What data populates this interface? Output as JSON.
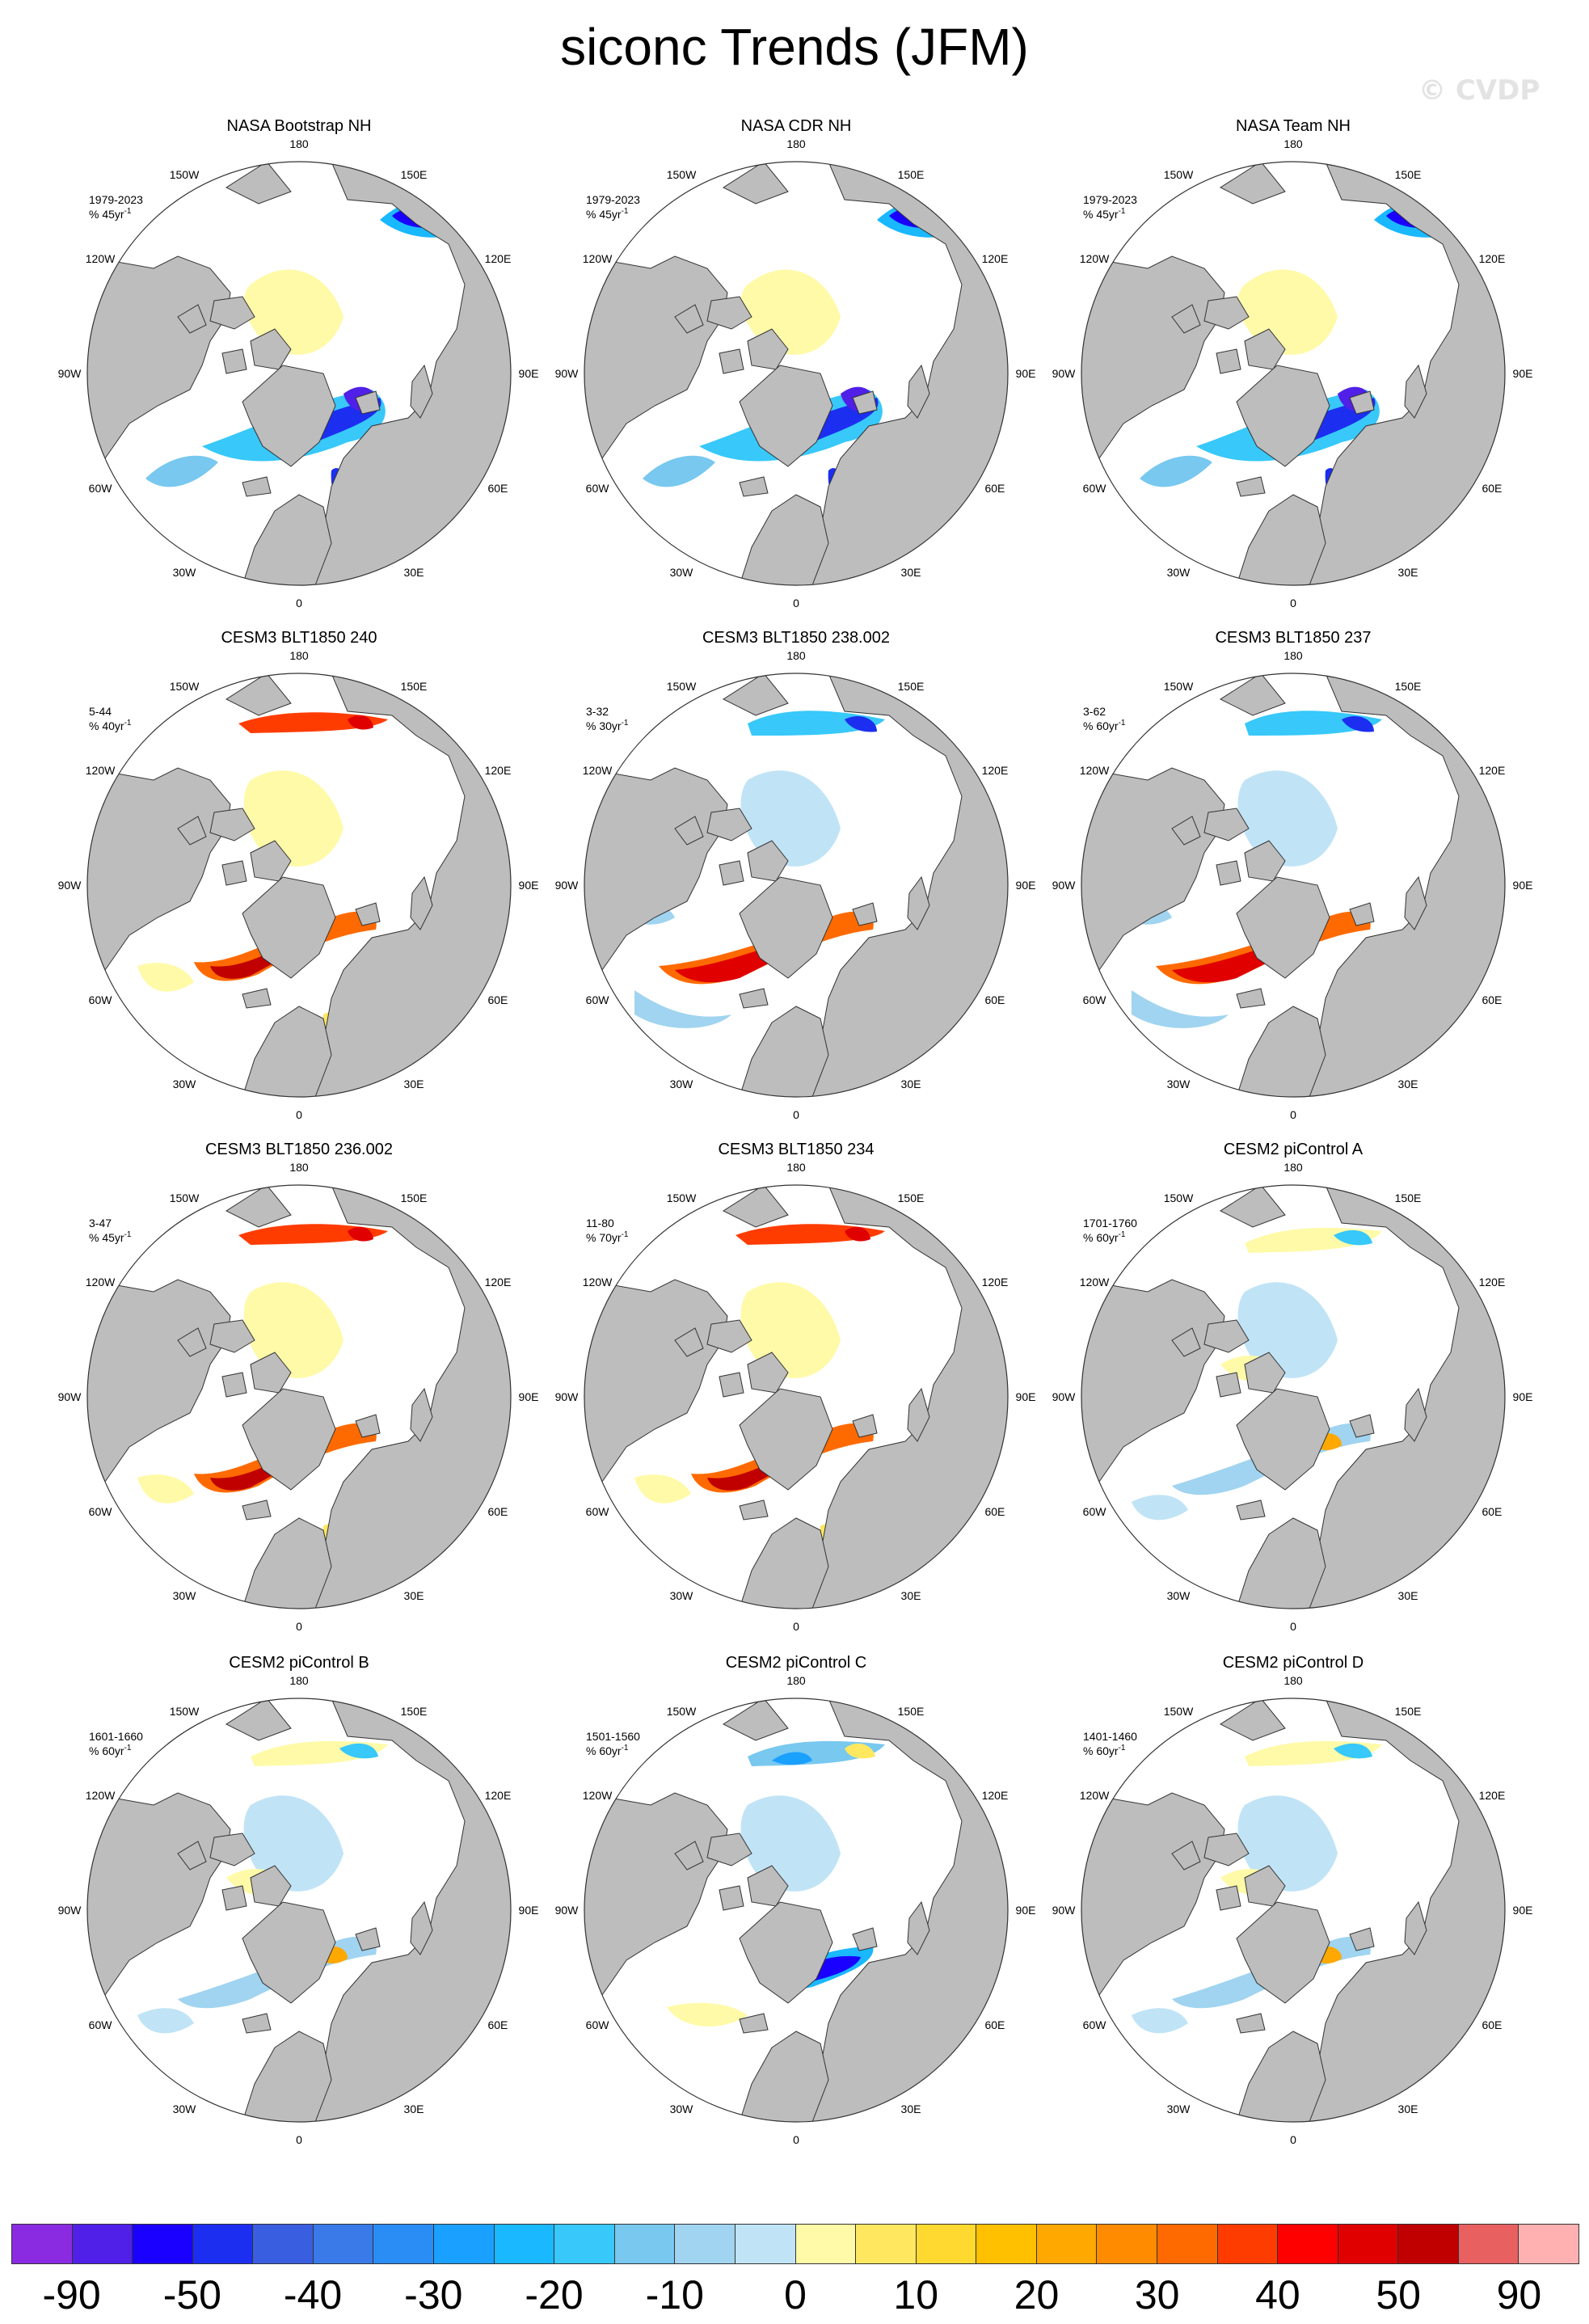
{
  "title": "siconc Trends (JFM)",
  "watermark": "© CVDP",
  "colors": {
    "land": "#bdbdbd",
    "ocean": "#ffffff",
    "outline": "#333333"
  },
  "degree_labels": {
    "top": "180",
    "top_left": "150W",
    "top_right": "150E",
    "upper_left": "120W",
    "upper_right": "120E",
    "left": "90W",
    "right": "90E",
    "lower_left": "60W",
    "lower_right": "60E",
    "bottom_left": "30W",
    "bottom_right": "30E",
    "bottom": "0"
  },
  "panels": [
    {
      "title": "NASA Bootstrap NH",
      "period": "1979-2023",
      "units": "% 45yr",
      "units_sup": "-1",
      "pattern": "obs"
    },
    {
      "title": "NASA CDR NH",
      "period": "1979-2023",
      "units": "% 45yr",
      "units_sup": "-1",
      "pattern": "obs"
    },
    {
      "title": "NASA Team NH",
      "period": "1979-2023",
      "units": "% 45yr",
      "units_sup": "-1",
      "pattern": "obs"
    },
    {
      "title": "CESM3 BLT1850 240",
      "period": "5-44",
      "units": "% 40yr",
      "units_sup": "-1",
      "pattern": "warm"
    },
    {
      "title": "CESM3 BLT1850 238.002",
      "period": "3-32",
      "units": "% 30yr",
      "units_sup": "-1",
      "pattern": "mixedwarm"
    },
    {
      "title": "CESM3 BLT1850 237",
      "period": "3-62",
      "units": "% 60yr",
      "units_sup": "-1",
      "pattern": "mixedwarm"
    },
    {
      "title": "CESM3 BLT1850 236.002",
      "period": "3-47",
      "units": "% 45yr",
      "units_sup": "-1",
      "pattern": "warm"
    },
    {
      "title": "CESM3 BLT1850 234",
      "period": "11-80",
      "units": "% 70yr",
      "units_sup": "-1",
      "pattern": "warm"
    },
    {
      "title": "CESM2 piControl A",
      "period": "1701-1760",
      "units": "% 60yr",
      "units_sup": "-1",
      "pattern": "mild"
    },
    {
      "title": "CESM2 piControl B",
      "period": "1601-1660",
      "units": "% 60yr",
      "units_sup": "-1",
      "pattern": "mild"
    },
    {
      "title": "CESM2 piControl C",
      "period": "1501-1560",
      "units": "% 60yr",
      "units_sup": "-1",
      "pattern": "cool"
    },
    {
      "title": "CESM2 piControl D",
      "period": "1401-1460",
      "units": "% 60yr",
      "units_sup": "-1",
      "pattern": "mild"
    }
  ],
  "colorbar": {
    "colors": [
      "#8a2be2",
      "#5020e8",
      "#1a00ff",
      "#1c2ef0",
      "#3a5ee0",
      "#3a7ae8",
      "#2a8cf5",
      "#1aa0ff",
      "#1ab8ff",
      "#38c8fa",
      "#78c8f0",
      "#a0d4f0",
      "#c0e4f6",
      "#fffaa8",
      "#ffe860",
      "#ffd830",
      "#ffc000",
      "#ffa800",
      "#ff8c00",
      "#ff6a00",
      "#ff3c00",
      "#ff0000",
      "#e00000",
      "#c00000",
      "#e86060",
      "#ffb0b0"
    ],
    "labels": [
      "-90",
      "-50",
      "-40",
      "-30",
      "-20",
      "-10",
      "0",
      "10",
      "20",
      "30",
      "40",
      "50",
      "90"
    ]
  }
}
